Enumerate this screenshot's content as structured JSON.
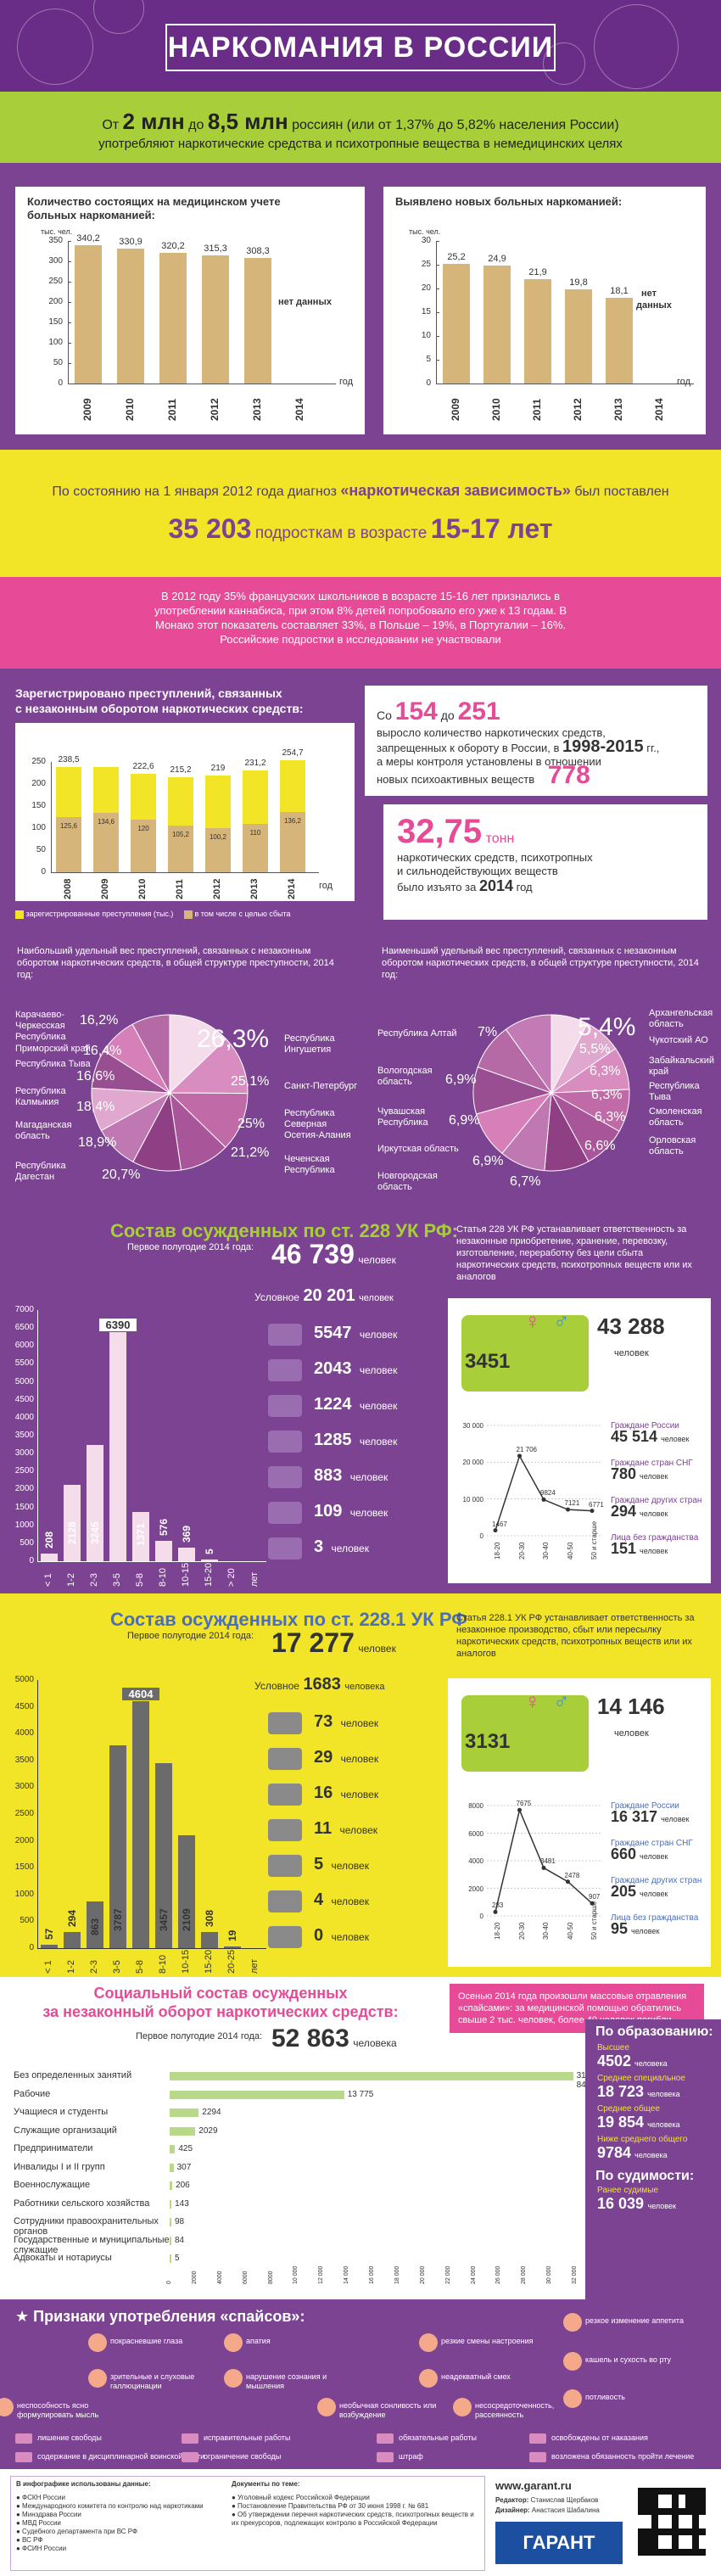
{
  "header": {
    "title": "НАРКОМАНИЯ В РОССИИ"
  },
  "intro": {
    "prefix": "От",
    "from": "2 млн",
    "to_word": "до",
    "to": "8,5 млн",
    "suffix": "россиян (или от 1,37% до 5,82% населения России)",
    "line2": "употребляют наркотические средства и психотропные вещества в немедицинских целях"
  },
  "chart_registered": {
    "title_l1": "Количество состоящих на медицинском учете",
    "title_l2": "больных наркоманией:",
    "unit": "тыс. чел.",
    "nodata": "нет данных",
    "xunit": "год"
  },
  "chart_new": {
    "title": "Выявлено новых больных наркоманией:",
    "unit": "тыс. чел.",
    "nodata_l1": "нет",
    "nodata_l2": "данных",
    "xunit": "год"
  },
  "chart_data": [
    {
      "type": "bar",
      "title": "Количество состоящих на медицинском учете больных наркоманией:",
      "ylabel": "тыс. чел.",
      "categories": [
        "2009",
        "2010",
        "2011",
        "2012",
        "2013",
        "2014"
      ],
      "values": [
        340.2,
        330.9,
        320.2,
        315.3,
        308.3,
        null
      ],
      "value_labels": [
        "340,2",
        "330,9",
        "320,2",
        "315,3",
        "308,3",
        ""
      ],
      "yticks": [
        "0",
        "50",
        "100",
        "150",
        "200",
        "250",
        "300",
        "350"
      ],
      "ylim": [
        0,
        350
      ]
    },
    {
      "type": "bar",
      "title": "Выявлено новых больных наркоманией:",
      "ylabel": "тыс. чел.",
      "categories": [
        "2009",
        "2010",
        "2011",
        "2012",
        "2013",
        "2014"
      ],
      "values": [
        25.2,
        24.9,
        21.9,
        19.8,
        18.1,
        null
      ],
      "value_labels": [
        "25,2",
        "24,9",
        "21,9",
        "19,8",
        "18,1",
        ""
      ],
      "yticks": [
        "0",
        "5",
        "10",
        "15",
        "20",
        "25",
        "30"
      ],
      "ylim": [
        0,
        30
      ]
    },
    {
      "type": "bar",
      "title": "Зарегистрировано преступлений, связанных с незаконным оборотом наркотических средств:",
      "ylabel": "тыс.",
      "categories": [
        "2008",
        "2009",
        "2010",
        "2011",
        "2012",
        "2013",
        "2014"
      ],
      "series": [
        {
          "name": "зарегистрированные преступления (тыс.)",
          "values": [
            238.5,
            238.0,
            222.6,
            215.2,
            219.0,
            231.2,
            254.7
          ]
        },
        {
          "name": "в том числе с целью сбыта",
          "values": [
            125.6,
            134.6,
            120.0,
            105.2,
            100.2,
            110.0,
            136.2
          ]
        }
      ],
      "value_labels": [
        "238,5",
        "",
        "222,6",
        "215,2",
        "219",
        "231,2",
        "254,7"
      ],
      "inner_labels": [
        "125,6",
        "134,6",
        "120",
        "105,2",
        "100,2",
        "110",
        "136,2"
      ],
      "yticks": [
        "0",
        "50",
        "100",
        "150",
        "200",
        "250"
      ],
      "ylim": [
        0,
        250
      ]
    },
    {
      "type": "pie",
      "title": "Наибольший удельный вес преступлений, связанных с незаконным оборотом наркотических средств, в общей структуре преступности, 2014 год:",
      "categories": [
        "Республика Ингушетия",
        "Санкт-Петербург",
        "Республика Северная Осетия-Алания",
        "Чеченская Республика",
        "Республика Дагестан",
        "Магаданская область",
        "Республика Калмыкия",
        "Республика Тыва",
        "Приморский край",
        "Карачаево-Черкесская Республика"
      ],
      "values": [
        26.3,
        25.1,
        25.0,
        21.2,
        20.7,
        18.9,
        18.4,
        16.6,
        16.4,
        16.2
      ],
      "value_labels": [
        "26,3%",
        "25,1%",
        "25%",
        "21,2%",
        "20,7%",
        "18,9%",
        "18,4%",
        "16,6%",
        "16,4%",
        "16,2%"
      ]
    },
    {
      "type": "pie",
      "title": "Наименьший удельный вес преступлений, связанных с незаконным оборотом наркотических средств, в общей структуре преступности, 2014 год:",
      "categories": [
        "Архангельская область",
        "Чукотский АО",
        "Забайкальский край",
        "Республика Тыва",
        "Смоленская область",
        "Орловская область",
        "Новгородская область",
        "Иркутская область",
        "Чувашская Республика",
        "Вологодская область",
        "Республика Алтай"
      ],
      "values": [
        5.4,
        5.5,
        6.3,
        6.3,
        6.3,
        6.6,
        6.7,
        6.9,
        6.9,
        6.9,
        7.0
      ],
      "value_labels": [
        "5,4%",
        "5,5%",
        "6,3%",
        "6,3%",
        "6,3%",
        "6,6%",
        "6,7%",
        "6,9%",
        "6,9%",
        "6,9%",
        "7%"
      ]
    },
    {
      "type": "bar",
      "title": "Состав осужденных по ст. 228 УК РФ",
      "categories": [
        "< 1",
        "1-2",
        "2-3",
        "3-5",
        "5-8",
        "8-10",
        "10-15",
        "15-20",
        "> 20",
        "лет"
      ],
      "values": [
        208,
        2128,
        3245,
        6390,
        1371,
        576,
        369,
        5,
        0,
        0
      ],
      "value_labels": [
        "208",
        "2128",
        "3245",
        "6390",
        "1371",
        "576",
        "369",
        "5",
        "",
        ""
      ],
      "yticks": [
        "0",
        "500",
        "1000",
        "1500",
        "2000",
        "2500",
        "3000",
        "3500",
        "4000",
        "4500",
        "5000",
        "5500",
        "6000",
        "6500",
        "7000"
      ],
      "ylim": [
        0,
        7000
      ]
    },
    {
      "type": "bar",
      "title": "Состав осужденных по ст. 228.1 УК РФ",
      "categories": [
        "< 1",
        "1-2",
        "2-3",
        "3-5",
        "5-8",
        "8-10",
        "10-15",
        "15-20",
        "20-25",
        "лет"
      ],
      "values": [
        57,
        294,
        863,
        3787,
        4604,
        3457,
        2109,
        308,
        19,
        0
      ],
      "value_labels": [
        "57",
        "294",
        "863",
        "3787",
        "4604",
        "3457",
        "2109",
        "308",
        "19",
        ""
      ],
      "yticks": [
        "0",
        "500",
        "1000",
        "1500",
        "2000",
        "2500",
        "3000",
        "3500",
        "4000",
        "4500",
        "5000"
      ],
      "ylim": [
        0,
        5000
      ]
    },
    {
      "type": "bar",
      "title": "Социальный состав осужденных за незаконный оборот наркотических средств:",
      "categories": [
        "Без определенных занятий",
        "Рабочие",
        "Учащиеся и студенты",
        "Служащие организаций",
        "Предприниматели",
        "Инвалиды I и II групп",
        "Военнослужащие",
        "Работники сельского хозяйства",
        "Сотрудники правоохранительных органов",
        "Государственные и муниципальные служащие",
        "Адвокаты и нотариусы"
      ],
      "values": [
        31840,
        13775,
        2294,
        2029,
        425,
        307,
        206,
        143,
        98,
        84,
        5
      ],
      "value_labels": [
        "31 840",
        "13 775",
        "2294",
        "2029",
        "425",
        "307",
        "206",
        "143",
        "98",
        "84",
        "5"
      ],
      "xlim": [
        0,
        32000
      ]
    }
  ],
  "diag": {
    "prefix": "По состоянию на 1 января 2012 года диагноз",
    "quote": "«наркотическая зависимость»",
    "suffix": "был поставлен",
    "count": "35 203",
    "mid": "подросткам в возрасте",
    "age": "15-17 лет"
  },
  "euro": {
    "text": "В 2012 году 35% французских школьников в возрасте 15-16 лет признались в употреблении каннабиса, при этом 8% детей попробовало его уже к 13 годам. В Монако этот показатель составляет 33%, в Польше – 19%, в Португалии – 16%. Российские подростки в исследовании не участвовали"
  },
  "crimes": {
    "title_l1": "Зарегистрировано преступлений, связанных",
    "title_l2": "с незаконным оборотом наркотических средств:",
    "xunit": "год",
    "legend1": "зарегистрированные преступления (тыс.)",
    "legend2": "в том числе с целью сбыта",
    "ban_prefix": "Со",
    "ban_from": "154",
    "ban_to_word": "до",
    "ban_to": "251",
    "ban_line2": "выросло количество наркотических средств,",
    "ban_line3": "запрещенных к обороту в России, в",
    "ban_years": "1998-2015",
    "ban_years_suffix": "гг.,",
    "ban_line4": "а меры контроля установлены в отношении",
    "ban_line5": "новых психоактивных веществ",
    "ban_new": "778",
    "seized_num": "32,75",
    "seized_unit": "тонн",
    "seized_l1": "наркотических средств, психотропных",
    "seized_l2": "и сильнодействующих веществ",
    "seized_l3": "было изъято за",
    "seized_year": "2014",
    "seized_year_suffix": "год"
  },
  "convicts_228": {
    "title": "Состав осужденных по ст. 228 УК РФ:",
    "period": "Первое полугодие 2014 года:",
    "total": "46 739",
    "unit": "человек",
    "conditional_label": "Условное",
    "conditional": "20 201",
    "conditional_unit": "человек",
    "terms": [
      "5547",
      "2043",
      "1224",
      "1285",
      "883",
      "109",
      "3"
    ],
    "term_unit": "человек",
    "years_unit": "лет",
    "info": "Статья 228 УК РФ устанавливает ответственность за незаконные приобретение, хранение, перевозку, изготовление, переработку без цели сбыта наркотических средств, психотропных веществ или их аналогов",
    "women": "3451",
    "men": "43 288",
    "gender_unit": "человек",
    "citizens_label": "Граждане России",
    "citizens": "45 514",
    "cis_label": "Граждане стран СНГ",
    "cis": "780",
    "other_label": "Граждане других стран",
    "other": "294",
    "stateless_label": "Лица без гражданства",
    "stateless": "151",
    "age_line": [
      "1467",
      "21 706",
      "9824",
      "7121",
      "6771"
    ],
    "age_cats": [
      "18-20",
      "20-30",
      "30-40",
      "40-50",
      "50 и старше"
    ],
    "age_yticks": [
      "0",
      "10 000",
      "20 000",
      "30 000"
    ]
  },
  "convicts_2281": {
    "title": "Состав осужденных по ст. 228.1 УК РФ",
    "period": "Первое полугодие 2014 года:",
    "total": "17 277",
    "unit": "человек",
    "conditional_label": "Условное",
    "conditional": "1683",
    "conditional_unit": "человека",
    "terms": [
      "73",
      "29",
      "16",
      "11",
      "5",
      "4",
      "0"
    ],
    "term_unit": "человек",
    "years_unit": "лет",
    "info": "Статья 228.1 УК РФ устанавливает ответственность за незаконное производство, сбыт или пересылку наркотических средств, психотропных веществ или их аналогов",
    "women": "3131",
    "men": "14 146",
    "gender_unit": "человек",
    "citizens_label": "Граждане России",
    "citizens": "16 317",
    "cis_label": "Граждане стран СНГ",
    "cis": "660",
    "other_label": "Граждане других стран",
    "other": "205",
    "stateless_label": "Лица без гражданства",
    "stateless": "95",
    "age_line": [
      "283",
      "7675",
      "3481",
      "2478",
      "907"
    ],
    "age_cats": [
      "18-20",
      "20-30",
      "30-40",
      "40-50",
      "50 и старше"
    ],
    "age_yticks": [
      "0",
      "2000",
      "4000",
      "6000",
      "8000"
    ]
  },
  "social": {
    "title_l1": "Социальный состав осужденных",
    "title_l2": "за незаконный оборот наркотических средств:",
    "period": "Первое полугодие 2014 года:",
    "total": "52 863",
    "unit": "человека",
    "xticks": [
      "0",
      "2000",
      "4000",
      "6000",
      "8000",
      "10 000",
      "12 000",
      "14 000",
      "16 000",
      "18 000",
      "20 000",
      "22 000",
      "24 000",
      "26 000",
      "28 000",
      "30 000",
      "32 000"
    ],
    "note": "Осенью 2014 года произошли массовые отравления «спайсами»: за медицинской помощью обратились свыше 2 тыс. человек, более 40 человек погибли",
    "edu_title": "По образованию:",
    "edu": [
      {
        "label": "Высшее",
        "value": "4502",
        "unit": "человека"
      },
      {
        "label": "Среднее специальное",
        "value": "18 723",
        "unit": "человека"
      },
      {
        "label": "Среднее общее",
        "value": "19 854",
        "unit": "человека"
      },
      {
        "label": "Ниже среднего общего",
        "value": "9784",
        "unit": "человека"
      }
    ],
    "crim_title": "По судимости:",
    "crim_label": "Ранее судимые",
    "crim_value": "16 039",
    "crim_unit": "человек"
  },
  "signs": {
    "title": "Признаки употребления «спайсов»:",
    "items": [
      "покрасневшие глаза",
      "апатия",
      "резкие смены настроения",
      "резкое изменение аппетита",
      "зрительные и слуховые галлюцинации",
      "нарушение сознания и мышления",
      "неадекватный смех",
      "кашель и сухость во рту",
      "потливость",
      "неспособность ясно формулировать мысль",
      "необычная сонливость или возбуждение",
      "несосредоточенность, рассеянность"
    ]
  },
  "legend": {
    "items": [
      "лишение свободы",
      "исправительные работы",
      "обязательные работы",
      "освобождены от наказания",
      "содержание в дисциплинарной воинской части",
      "ограничение свободы",
      "штраф",
      "возложена обязанность пройти лечение"
    ]
  },
  "footer": {
    "sources_title": "В инфографике использованы данные:",
    "sources": [
      "ФСКН России",
      "Международного комитета по контролю над наркотиками",
      "Минздрава России",
      "МВД России",
      "Судебного департамента при ВС РФ",
      "ВС РФ",
      "ФСИН России"
    ],
    "docs_title": "Документы по теме:",
    "docs": [
      "Уголовный кодекс Российской Федерации",
      "Постановление Правительства РФ от 30 июня 1998 г. № 681",
      "Об утверждении перечня наркотических средств, психотропных веществ и их прекурсоров, подлежащих контролю в Российской Федерации"
    ],
    "site": "www.garant.ru",
    "editor_label": "Редактор:",
    "editor": "Станислав Щербаков",
    "designer_label": "Дизайнер:",
    "designer": "Анастасия Шабалина",
    "logo": "ГАРАНТ"
  },
  "colors": {
    "purple": "#7b4391",
    "dark_purple": "#6a2d87",
    "green": "#a8cf3a",
    "yellow": "#f2e426",
    "pink": "#e74a96",
    "tan_bar": "#d6b57b"
  }
}
